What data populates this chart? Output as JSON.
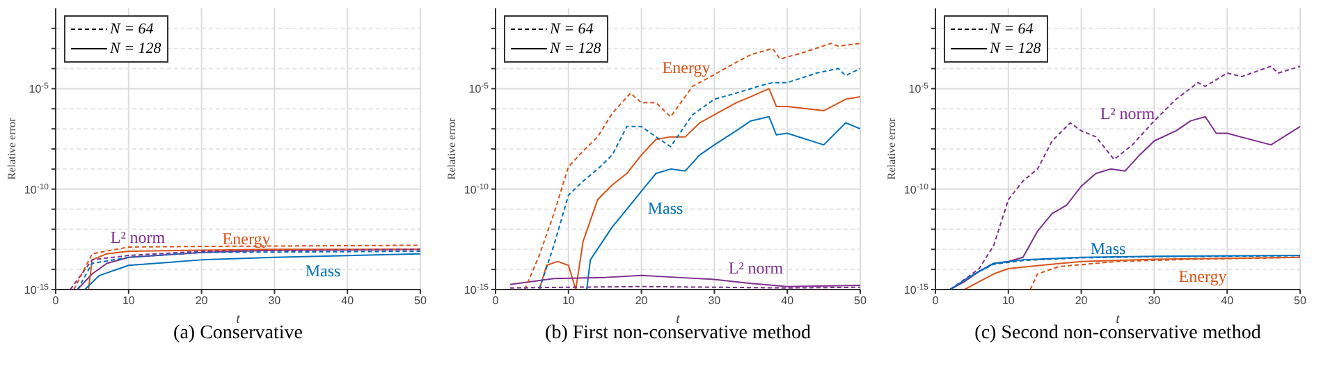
{
  "chart_data": [
    {
      "type": "line",
      "title": "(a) Conservative",
      "xlabel": "t",
      "ylabel": "Relative error",
      "xlim": [
        0,
        50
      ],
      "xticks": [
        0,
        10,
        20,
        30,
        40,
        50
      ],
      "ylim": [
        1e-15,
        0.1
      ],
      "log": "y",
      "grid": true,
      "legend": "top left",
      "yticks": [
        {
          "value": 1e-15,
          "label": "10$^{-15}$"
        },
        {
          "value": 1e-14,
          "label": null
        },
        {
          "value": 1e-13,
          "label": null
        },
        {
          "value": 1e-12,
          "label": null
        },
        {
          "value": 1e-11,
          "label": null
        },
        {
          "value": 1e-10,
          "label": "10$^{-10}$"
        },
        {
          "value": 1e-09,
          "label": null
        },
        {
          "value": 1e-08,
          "label": null
        },
        {
          "value": 1e-07,
          "label": null
        },
        {
          "value": 1e-06,
          "label": null
        },
        {
          "value": 1e-05,
          "label": "10$^{-5}$"
        },
        {
          "value": 0.0001,
          "label": null
        },
        {
          "value": 0.001,
          "label": null
        },
        {
          "value": 0.01,
          "label": null
        }
      ],
      "annotations": [
        "L² norm",
        "Energy",
        "Mass"
      ],
      "series": [
        {
          "color": "#7e2f8e",
          "line_style": "solid",
          "x": [
            3,
            5,
            7,
            10,
            20,
            30,
            50
          ],
          "values": [
            1e-15,
            6e-15,
            2e-14,
            4e-14,
            7e-14,
            9e-14,
            1e-13
          ]
        },
        {
          "color": "#d95319",
          "line_style": "solid",
          "x": [
            4.5,
            5,
            7,
            10,
            20,
            30,
            50
          ],
          "values": [
            1e-15,
            3e-14,
            6e-14,
            8e-14,
            9e-14,
            1e-13,
            1e-13
          ]
        },
        {
          "color": "#0072bd",
          "line_style": "solid",
          "x": [
            4,
            6,
            10,
            20,
            30,
            50
          ],
          "values": [
            1e-15,
            5e-15,
            1.6e-14,
            3e-14,
            4e-14,
            6e-14
          ]
        },
        {
          "color": "#7e2f8e",
          "line_style": "dashed",
          "x": [
            2,
            5,
            10,
            20,
            50
          ],
          "values": [
            1e-15,
            3e-14,
            5e-14,
            8e-14,
            1e-13
          ]
        },
        {
          "color": "#d95319",
          "line_style": "dashed",
          "x": [
            2.5,
            5,
            10,
            20,
            50
          ],
          "values": [
            1e-15,
            6e-14,
            1.3e-13,
            1.4e-13,
            1.6e-13
          ]
        },
        {
          "color": "#0072bd",
          "line_style": "dashed",
          "x": [
            3,
            5,
            10,
            20,
            50
          ],
          "values": [
            1e-15,
            2e-14,
            4e-14,
            7e-14,
            8e-14
          ]
        },
        {
          "name": "N = 64",
          "color": "#000000",
          "line_style": "dashed"
        },
        {
          "name": "N = 128",
          "color": "#000000",
          "line_style": "solid"
        }
      ]
    },
    {
      "type": "line",
      "title": "(b) First non-conservative method",
      "xlabel": "t",
      "ylabel": "Relative error",
      "xlim": [
        0,
        50
      ],
      "xticks": [
        0,
        10,
        20,
        30,
        40,
        50
      ],
      "ylim": [
        1e-15,
        0.1
      ],
      "log": "y",
      "grid": true,
      "legend": "top left",
      "yticks": [
        {
          "value": 1e-15,
          "label": "10$^{-15}$"
        },
        {
          "value": 1e-14,
          "label": null
        },
        {
          "value": 1e-13,
          "label": null
        },
        {
          "value": 1e-12,
          "label": null
        },
        {
          "value": 1e-11,
          "label": null
        },
        {
          "value": 1e-10,
          "label": "10$^{-10}$"
        },
        {
          "value": 1e-09,
          "label": null
        },
        {
          "value": 1e-08,
          "label": null
        },
        {
          "value": 1e-07,
          "label": null
        },
        {
          "value": 1e-06,
          "label": null
        },
        {
          "value": 1e-05,
          "label": "10$^{-5}$"
        },
        {
          "value": 0.0001,
          "label": null
        },
        {
          "value": 0.001,
          "label": null
        },
        {
          "value": 0.01,
          "label": null
        }
      ],
      "annotations": [
        "Energy",
        "Mass",
        "L² norm"
      ],
      "series": [
        {
          "color": "#d95319",
          "line_style": "solid",
          "x": [
            6,
            7,
            8.5,
            10,
            11,
            12,
            14,
            16,
            18,
            20,
            22,
            24,
            26,
            28,
            30,
            33,
            35,
            37.5,
            38.5,
            40,
            45,
            48,
            50
          ],
          "values": [
            1e-15,
            1.6e-14,
            2.5e-14,
            1.6e-14,
            1e-15,
            2.5e-13,
            3e-11,
            1.6e-10,
            6e-10,
            5e-09,
            3e-08,
            4e-08,
            4e-08,
            2e-07,
            5e-07,
            2e-06,
            4e-06,
            1e-05,
            1.3e-06,
            1.3e-06,
            8e-07,
            3e-06,
            4e-06
          ]
        },
        {
          "color": "#0072bd",
          "line_style": "solid",
          "x": [
            12.5,
            13,
            16,
            18,
            20,
            22,
            24,
            26,
            28,
            30,
            33,
            35,
            37.5,
            38.5,
            40,
            45,
            48,
            50
          ],
          "values": [
            1e-15,
            3e-14,
            1.3e-12,
            1e-11,
            8e-11,
            6e-10,
            1e-09,
            8e-10,
            5e-09,
            1.6e-08,
            8e-08,
            2.5e-07,
            4e-07,
            5e-08,
            6e-08,
            1.6e-08,
            2e-07,
            1e-07
          ]
        },
        {
          "color": "#7e2f8e",
          "line_style": "solid",
          "x": [
            2,
            5,
            8,
            15,
            20,
            25,
            30,
            35,
            40,
            50
          ],
          "values": [
            1.8e-15,
            2.5e-15,
            3.5e-15,
            4e-15,
            5e-15,
            4e-15,
            3.2e-15,
            2e-15,
            1.4e-15,
            1.6e-15
          ]
        },
        {
          "color": "#d95319",
          "line_style": "dashed",
          "x": [
            4,
            6,
            8,
            10,
            12,
            14,
            16,
            18.5,
            20,
            22,
            24,
            27,
            30,
            32,
            35,
            38,
            39,
            42,
            46,
            47,
            50
          ],
          "values": [
            1e-15,
            5e-14,
            6e-12,
            1.3e-09,
            8e-09,
            4e-08,
            6e-07,
            6e-06,
            2e-06,
            2e-06,
            4e-07,
            1.3e-05,
            5e-05,
            0.00013,
            0.0005,
            0.001,
            0.0003,
            0.0006,
            0.0018,
            0.0013,
            0.0018
          ]
        },
        {
          "color": "#0072bd",
          "line_style": "dashed",
          "x": [
            6,
            8,
            10,
            12,
            14,
            16,
            18,
            20,
            22,
            24,
            27,
            30,
            33,
            36,
            38,
            40,
            44,
            47,
            48,
            50
          ],
          "values": [
            1e-15,
            1.6e-13,
            5e-11,
            2.5e-10,
            1e-09,
            5e-09,
            1.3e-07,
            1.3e-07,
            4e-08,
            1.3e-08,
            5e-07,
            3e-06,
            6e-06,
            1.3e-05,
            2e-05,
            2e-05,
            6e-05,
            0.0001,
            4.5e-05,
            0.0001
          ]
        },
        {
          "color": "#7e2f8e",
          "line_style": "dashed",
          "x": [
            2,
            10,
            20,
            30,
            40,
            50
          ],
          "values": [
            1.2e-15,
            1.3e-15,
            1.4e-15,
            1.3e-15,
            1.2e-15,
            1.3e-15
          ]
        },
        {
          "name": "N = 64",
          "color": "#000000",
          "line_style": "dashed"
        },
        {
          "name": "N = 128",
          "color": "#000000",
          "line_style": "solid"
        }
      ]
    },
    {
      "type": "line",
      "title": "(c) Second non-conservative method",
      "xlabel": "t",
      "ylabel": "Relative error",
      "xlim": [
        0,
        50
      ],
      "xticks": [
        0,
        10,
        20,
        30,
        40,
        50
      ],
      "ylim": [
        1e-15,
        0.1
      ],
      "log": "y",
      "grid": true,
      "legend": "top left",
      "yticks": [
        {
          "value": 1e-15,
          "label": "10$^{-15}$"
        },
        {
          "value": 1e-14,
          "label": null
        },
        {
          "value": 1e-13,
          "label": null
        },
        {
          "value": 1e-12,
          "label": null
        },
        {
          "value": 1e-11,
          "label": null
        },
        {
          "value": 1e-10,
          "label": "10$^{-10}$"
        },
        {
          "value": 1e-09,
          "label": null
        },
        {
          "value": 1e-08,
          "label": null
        },
        {
          "value": 1e-07,
          "label": null
        },
        {
          "value": 1e-06,
          "label": null
        },
        {
          "value": 1e-05,
          "label": "10$^{-5}$"
        },
        {
          "value": 0.0001,
          "label": null
        },
        {
          "value": 0.001,
          "label": null
        },
        {
          "value": 0.01,
          "label": null
        }
      ],
      "annotations": [
        "L² norm",
        "Mass",
        "Energy"
      ],
      "series": [
        {
          "color": "#7e2f8e",
          "line_style": "solid",
          "x": [
            2,
            4,
            6,
            8,
            10,
            12,
            14,
            16,
            18,
            20,
            22,
            24,
            26,
            28,
            30,
            33,
            35,
            37,
            38.5,
            40,
            46,
            50
          ],
          "values": [
            1e-15,
            2.5e-15,
            8e-15,
            2e-14,
            2.5e-14,
            4e-14,
            8e-13,
            6e-12,
            1.6e-11,
            1.4e-10,
            6e-10,
            1e-09,
            8e-10,
            5e-09,
            2.5e-08,
            8e-08,
            2.5e-07,
            4e-07,
            6e-08,
            6e-08,
            1.6e-08,
            1.3e-07
          ]
        },
        {
          "color": "#0072bd",
          "line_style": "solid",
          "x": [
            2,
            4,
            6,
            8,
            12,
            20,
            30,
            50
          ],
          "values": [
            1e-15,
            3e-15,
            8e-15,
            2e-14,
            3e-14,
            4e-14,
            4.5e-14,
            5e-14
          ]
        },
        {
          "color": "#d95319",
          "line_style": "solid",
          "x": [
            4,
            6,
            8,
            10,
            12,
            20,
            30,
            50
          ],
          "values": [
            1e-15,
            2.5e-15,
            6e-15,
            1.1e-14,
            1.3e-14,
            2.5e-14,
            3.2e-14,
            4e-14
          ]
        },
        {
          "color": "#7e2f8e",
          "line_style": "dashed",
          "x": [
            2,
            4,
            6,
            8,
            10,
            12,
            14,
            16,
            18.5,
            20,
            22,
            24.5,
            27,
            30,
            33,
            36,
            37,
            40,
            42,
            46,
            47,
            50
          ],
          "values": [
            1e-15,
            3.2e-15,
            1.1e-14,
            1.6e-13,
            3e-11,
            2.5e-10,
            1e-09,
            2.5e-08,
            2e-07,
            8e-08,
            4e-08,
            3e-09,
            1.6e-08,
            2.5e-07,
            3e-06,
            2e-05,
            1.3e-05,
            6e-05,
            4e-05,
            0.00013,
            6e-05,
            0.00013
          ]
        },
        {
          "color": "#0072bd",
          "line_style": "dashed",
          "x": [
            2,
            4,
            6,
            8,
            12,
            20,
            30,
            50
          ],
          "values": [
            1e-15,
            3e-15,
            8e-15,
            1.8e-14,
            2.8e-14,
            3.8e-14,
            4.3e-14,
            4.8e-14
          ]
        },
        {
          "color": "#d95319",
          "line_style": "dashed",
          "x": [
            13,
            14,
            17,
            25,
            35,
            50
          ],
          "values": [
            1e-15,
            6e-15,
            1.4e-14,
            2.5e-14,
            3.2e-14,
            4e-14
          ]
        },
        {
          "name": "N = 64",
          "color": "#000000",
          "line_style": "dashed"
        },
        {
          "name": "N = 128",
          "color": "#000000",
          "line_style": "solid"
        }
      ]
    }
  ]
}
